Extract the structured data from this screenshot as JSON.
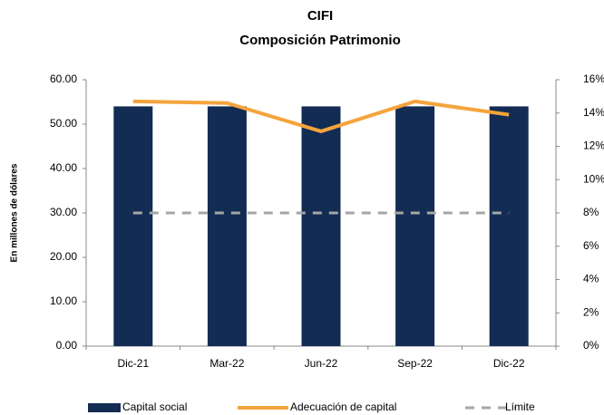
{
  "chart_data": {
    "type": "bar",
    "title": "CIFI",
    "subtitle": "Composición Patrimonio",
    "y_label": "En  millones de dólares",
    "categories": [
      "Dic-21",
      "Mar-22",
      "Jun-22",
      "Sep-22",
      "Dic-22"
    ],
    "series": [
      {
        "name": "Capital social",
        "type": "bar",
        "color": "#132c54",
        "values": [
          54,
          54,
          54,
          54,
          54
        ]
      },
      {
        "name": "Adecuación de capital",
        "type": "line",
        "axis": "y2",
        "color": "#f4a43c",
        "values": [
          14.7,
          14.6,
          12.9,
          14.7,
          13.9
        ]
      },
      {
        "name": "Límite",
        "type": "dashed",
        "axis": "y2",
        "color": "#a6a6a6",
        "values": [
          8,
          8,
          8,
          8,
          8
        ]
      }
    ],
    "ylim": [
      0,
      60
    ],
    "yticks": [
      {
        "value": 0,
        "label": "0.00"
      },
      {
        "value": 10,
        "label": "10.00"
      },
      {
        "value": 20,
        "label": "20.00"
      },
      {
        "value": 30,
        "label": "30.00"
      },
      {
        "value": 40,
        "label": "40.00"
      },
      {
        "value": 50,
        "label": "50.00"
      },
      {
        "value": 60,
        "label": "60.00"
      }
    ],
    "y2lim": [
      0,
      16
    ],
    "y2ticks": [
      {
        "value": 0,
        "label": "0%"
      },
      {
        "value": 2,
        "label": "2%"
      },
      {
        "value": 4,
        "label": "4%"
      },
      {
        "value": 6,
        "label": "6%"
      },
      {
        "value": 8,
        "label": "8%"
      },
      {
        "value": 10,
        "label": "10%"
      },
      {
        "value": 12,
        "label": "12%"
      },
      {
        "value": 14,
        "label": "14%"
      },
      {
        "value": 16,
        "label": "16%"
      }
    ],
    "legend": "bottom"
  }
}
